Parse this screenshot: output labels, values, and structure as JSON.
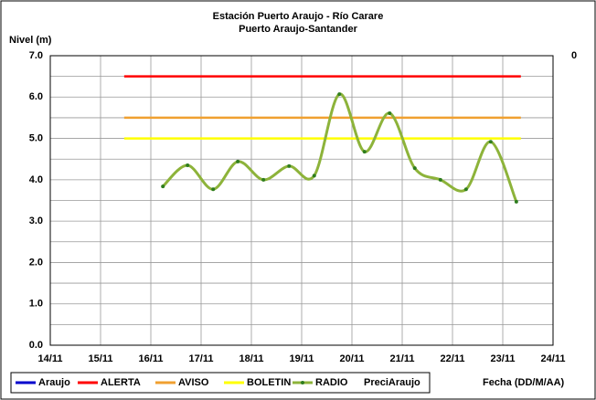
{
  "chart_data": {
    "type": "line",
    "title": "Estación Puerto Araujo - Río Carare",
    "subtitle": "Puerto Araujo-Santander",
    "ylabel": "Nivel (m)",
    "xlabel": "Fecha (DD/M/AA)",
    "xlim": [
      14,
      24
    ],
    "xticks": [
      {
        "value": 14,
        "label": "14/11"
      },
      {
        "value": 15,
        "label": "15/11"
      },
      {
        "value": 16,
        "label": "16/11"
      },
      {
        "value": 17,
        "label": "17/11"
      },
      {
        "value": 18,
        "label": "18/11"
      },
      {
        "value": 19,
        "label": "19/11"
      },
      {
        "value": 20,
        "label": "20/11"
      },
      {
        "value": 21,
        "label": "21/11"
      },
      {
        "value": 22,
        "label": "22/11"
      },
      {
        "value": 23,
        "label": "23/11"
      },
      {
        "value": 24,
        "label": "24/11"
      }
    ],
    "ylim": [
      0,
      7
    ],
    "yticks": [
      {
        "value": 0,
        "label": "0.0"
      },
      {
        "value": 1,
        "label": "1.0"
      },
      {
        "value": 2,
        "label": "2.0"
      },
      {
        "value": 3,
        "label": "3.0"
      },
      {
        "value": 4,
        "label": "4.0"
      },
      {
        "value": 5,
        "label": "5.0"
      },
      {
        "value": 6,
        "label": "6.0"
      },
      {
        "value": 7,
        "label": "7.0"
      }
    ],
    "minor_yticks": [
      0.5,
      1.5,
      2.5,
      3.5,
      4.5,
      5.5,
      6.5
    ],
    "y2ticks": [
      0
    ],
    "grid": true,
    "legend": "bottom",
    "series": [
      {
        "name": "Araujo",
        "color": "#0000cc",
        "x": [],
        "values": []
      },
      {
        "name": "ALERTA",
        "color": "#ff0000",
        "x": [
          15.47,
          23.36
        ],
        "values": [
          6.5,
          6.5
        ]
      },
      {
        "name": "AVISO",
        "color": "#f0a030",
        "x": [
          15.47,
          23.36
        ],
        "values": [
          5.5,
          5.5
        ]
      },
      {
        "name": "BOLETIN",
        "color": "#ffff00",
        "x": [
          15.47,
          23.36
        ],
        "values": [
          5.0,
          5.0
        ]
      },
      {
        "name": "RADIO",
        "color": "#8db33a",
        "marker_color": "#2e7d1e",
        "smooth": true,
        "x": [
          16.24,
          16.73,
          17.24,
          17.73,
          18.24,
          18.75,
          19.25,
          19.75,
          20.25,
          20.75,
          21.25,
          21.76,
          22.27,
          22.76,
          23.27
        ],
        "values": [
          3.84,
          4.35,
          3.77,
          4.44,
          4.0,
          4.33,
          4.1,
          6.07,
          4.68,
          5.61,
          4.28,
          4.0,
          3.77,
          4.92,
          3.47
        ]
      },
      {
        "name": "PreciAraujo",
        "x": [],
        "values": []
      }
    ]
  }
}
